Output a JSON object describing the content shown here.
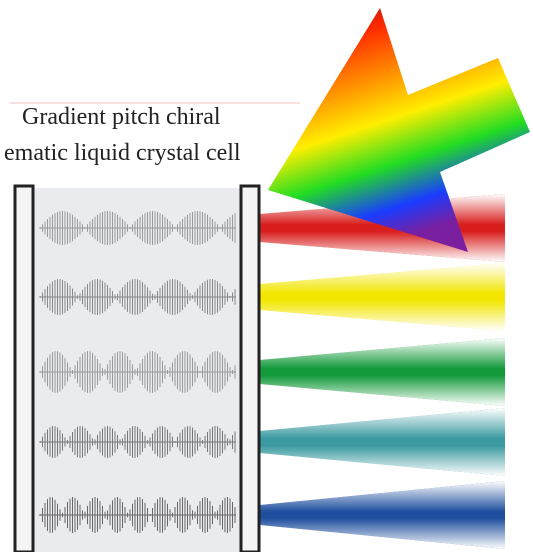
{
  "label": {
    "line1": "Gradient pitch chiral",
    "line2": "ematic liquid crystal cell"
  }
}
